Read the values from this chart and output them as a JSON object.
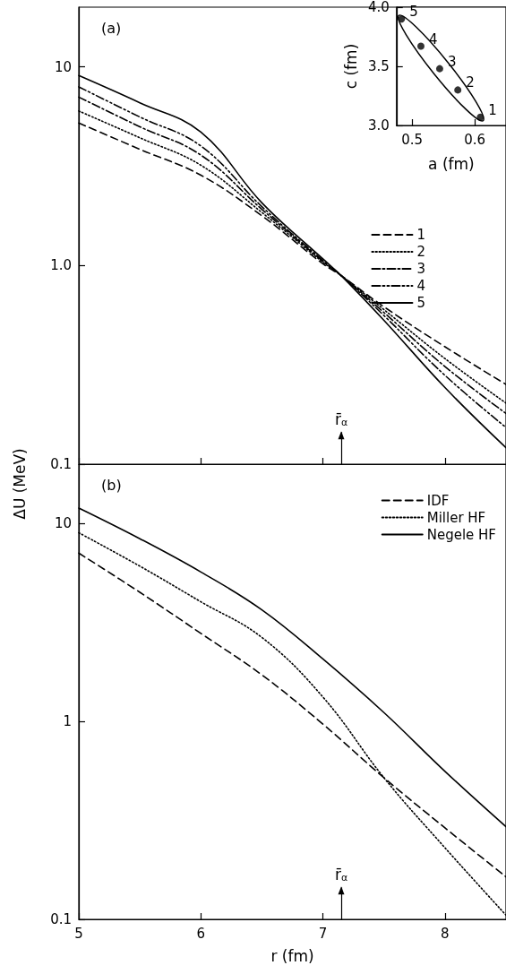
{
  "chart_data": [
    {
      "type": "line",
      "title": "(a)",
      "ylabel": "ΔU (MeV)",
      "log": "y",
      "xlim": [
        5,
        8.5
      ],
      "xticks": [
        5,
        6,
        7,
        8
      ],
      "ylim": [
        0.1,
        20
      ],
      "yticks": [
        0.1,
        {
          "value": 1,
          "label": "1.0"
        },
        10
      ],
      "tick_labels": "y",
      "legend": "right",
      "marker": "none",
      "x": [
        5,
        5.5,
        6,
        6.5,
        7,
        7.15,
        7.5,
        8,
        8.5
      ],
      "series": [
        {
          "name": "1",
          "color": "#000000",
          "line_style": "dashed",
          "values": [
            5.22,
            3.85,
            2.85,
            1.78,
            1.02,
            0.89,
            0.62,
            0.39,
            0.252
          ]
        },
        {
          "name": "2",
          "color": "#000000",
          "line_style": "dotted",
          "values": [
            6.0,
            4.4,
            3.2,
            1.85,
            1.04,
            0.89,
            0.6,
            0.34,
            0.203
          ]
        },
        {
          "name": "3",
          "color": "#000000",
          "line_style": "dashdot",
          "values": [
            7.05,
            5.0,
            3.6,
            1.92,
            1.05,
            0.89,
            0.58,
            0.31,
            0.18
          ]
        },
        {
          "name": "4",
          "color": "#000000",
          "line_style": "dashdotdot",
          "values": [
            7.94,
            5.6,
            4.0,
            1.98,
            1.06,
            0.89,
            0.56,
            0.28,
            0.153
          ]
        },
        {
          "name": "5",
          "color": "#000000",
          "line_style": "solid",
          "values": [
            9.05,
            6.6,
            4.7,
            2.07,
            1.08,
            0.89,
            0.53,
            0.243,
            0.121
          ]
        }
      ],
      "ref_lines": [
        {
          "axis": "x",
          "value": 7.15,
          "label": "r̄$_{α}$"
        }
      ]
    },
    {
      "type": "scatter",
      "xlabel": "a (fm)",
      "ylabel": "c (fm)",
      "xlim": [
        0.475,
        0.65
      ],
      "xticks": [
        0.5,
        0.6
      ],
      "ylim": [
        3,
        4
      ],
      "yticks": [
        {
          "value": 3,
          "label": "3.0"
        },
        3.5,
        {
          "value": 4,
          "label": "4.0"
        }
      ],
      "marker": "circle",
      "color": "#000000",
      "x": [
        0.609,
        0.573,
        0.544,
        0.514,
        0.483
      ],
      "values": [
        3.07,
        3.3,
        3.48,
        3.67,
        3.9
      ],
      "annotations": [
        {
          "text": "1",
          "x": 0.609,
          "y": 3.07
        },
        {
          "text": "2",
          "x": 0.573,
          "y": 3.3
        },
        {
          "text": "3",
          "x": 0.544,
          "y": 3.48
        },
        {
          "text": "4",
          "x": 0.514,
          "y": 3.67
        },
        {
          "text": "5",
          "x": 0.483,
          "y": 3.9
        }
      ]
    },
    {
      "type": "line",
      "title": "(b)",
      "xlabel": "r (fm)",
      "log": "y",
      "xlim": [
        5,
        8.5
      ],
      "xticks": [
        5,
        6,
        7,
        8
      ],
      "ylim": [
        0.1,
        20
      ],
      "yticks": [
        0.1,
        1,
        10
      ],
      "legend": "top right",
      "marker": "none",
      "x": [
        5,
        5.5,
        6,
        6.5,
        7,
        7.5,
        8,
        8.5
      ],
      "series": [
        {
          "name": "IDF",
          "color": "#000000",
          "line_style": "dashed",
          "values": [
            7.1,
            4.5,
            2.79,
            1.72,
            0.97,
            0.52,
            0.29,
            0.164
          ]
        },
        {
          "name": "Miller HF",
          "color": "#000000",
          "line_style": "dotted",
          "values": [
            9.0,
            6.1,
            4.03,
            2.66,
            1.33,
            0.52,
            0.23,
            0.105
          ]
        },
        {
          "name": "Negele HF",
          "color": "#000000",
          "line_style": "solid",
          "values": [
            12.0,
            8.4,
            5.7,
            3.67,
            2.07,
            1.11,
            0.56,
            0.294
          ]
        }
      ],
      "ref_lines": [
        {
          "axis": "x",
          "value": 7.15,
          "label": "r̄$_{α}$"
        }
      ]
    }
  ]
}
